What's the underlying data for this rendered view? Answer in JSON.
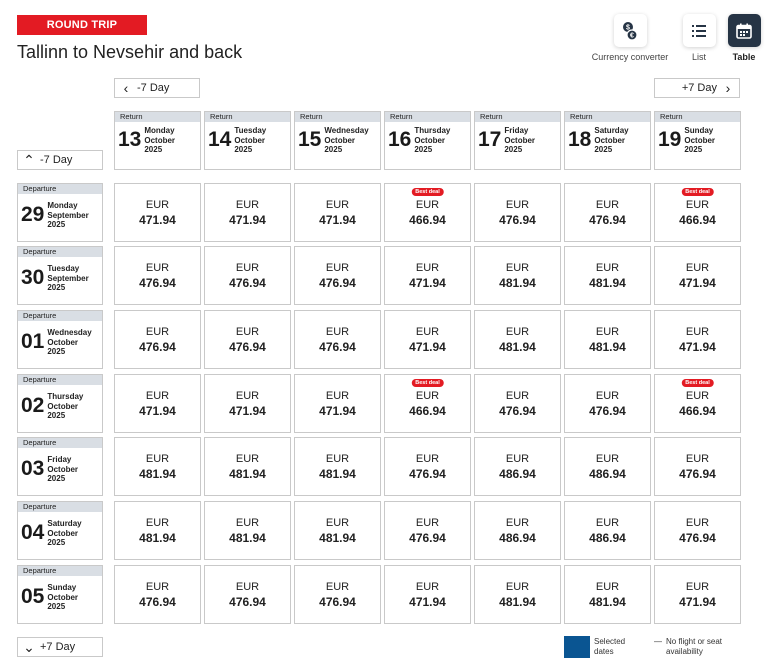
{
  "header": {
    "badge": "ROUND TRIP",
    "title": "Tallinn to Nevsehir and back"
  },
  "views": [
    {
      "label": "Currency converter",
      "icon": "currency-icon",
      "active": false
    },
    {
      "label": "List",
      "icon": "list-icon",
      "active": false
    },
    {
      "label": "Table",
      "icon": "table-icon",
      "active": true
    }
  ],
  "nav": {
    "prev_return": "-7 Day",
    "next_return": "+7 Day",
    "prev_departure": "-7 Day",
    "next_departure": "+7 Day"
  },
  "return_label": "Return",
  "departure_label": "Departure",
  "return_dates": [
    {
      "day": "13",
      "weekday": "Monday",
      "month": "October",
      "year": "2025"
    },
    {
      "day": "14",
      "weekday": "Tuesday",
      "month": "October",
      "year": "2025"
    },
    {
      "day": "15",
      "weekday": "Wednesday",
      "month": "October",
      "year": "2025"
    },
    {
      "day": "16",
      "weekday": "Thursday",
      "month": "October",
      "year": "2025"
    },
    {
      "day": "17",
      "weekday": "Friday",
      "month": "October",
      "year": "2025"
    },
    {
      "day": "18",
      "weekday": "Saturday",
      "month": "October",
      "year": "2025"
    },
    {
      "day": "19",
      "weekday": "Sunday",
      "month": "October",
      "year": "2025"
    }
  ],
  "departure_dates": [
    {
      "day": "29",
      "weekday": "Monday",
      "month": "September",
      "year": "2025"
    },
    {
      "day": "30",
      "weekday": "Tuesday",
      "month": "September",
      "year": "2025"
    },
    {
      "day": "01",
      "weekday": "Wednesday",
      "month": "October",
      "year": "2025"
    },
    {
      "day": "02",
      "weekday": "Thursday",
      "month": "October",
      "year": "2025"
    },
    {
      "day": "03",
      "weekday": "Friday",
      "month": "October",
      "year": "2025"
    },
    {
      "day": "04",
      "weekday": "Saturday",
      "month": "October",
      "year": "2025"
    },
    {
      "day": "05",
      "weekday": "Sunday",
      "month": "October",
      "year": "2025"
    }
  ],
  "currency": "EUR",
  "best_deal_label": "Best deal",
  "prices": [
    [
      "471.94",
      "471.94",
      "471.94",
      "466.94",
      "476.94",
      "476.94",
      "466.94"
    ],
    [
      "476.94",
      "476.94",
      "476.94",
      "471.94",
      "481.94",
      "481.94",
      "471.94"
    ],
    [
      "476.94",
      "476.94",
      "476.94",
      "471.94",
      "481.94",
      "481.94",
      "471.94"
    ],
    [
      "471.94",
      "471.94",
      "471.94",
      "466.94",
      "476.94",
      "476.94",
      "466.94"
    ],
    [
      "481.94",
      "481.94",
      "481.94",
      "476.94",
      "486.94",
      "486.94",
      "476.94"
    ],
    [
      "481.94",
      "481.94",
      "481.94",
      "476.94",
      "486.94",
      "486.94",
      "476.94"
    ],
    [
      "476.94",
      "476.94",
      "476.94",
      "471.94",
      "481.94",
      "481.94",
      "471.94"
    ]
  ],
  "best_deals": [
    [
      0,
      3
    ],
    [
      0,
      6
    ],
    [
      3,
      3
    ],
    [
      3,
      6
    ]
  ],
  "legend": {
    "selected": "Selected dates",
    "unavailable_mark": "—",
    "unavailable": "No flight or seat availability"
  },
  "colors": {
    "brand_red": "#e31b23",
    "selected_blue": "#0a5592",
    "dark_button": "#263445"
  }
}
